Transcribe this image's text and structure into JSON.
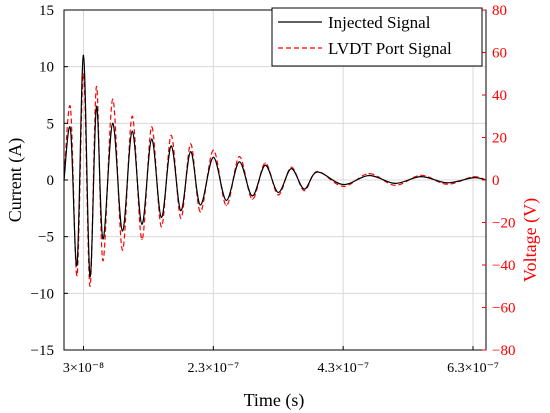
{
  "chart_data": {
    "type": "line",
    "title": "",
    "xlabel": "Time (s)",
    "ylabel_left": "Current (A)",
    "ylabel_right": "Voltage (V)",
    "xlim": [
      0.0,
      6.5e-07
    ],
    "ylim_left": [
      -15,
      15
    ],
    "ylim_right": [
      -80,
      80
    ],
    "x_ticks": [
      3e-08,
      2.3e-07,
      4.3e-07,
      6.3e-07
    ],
    "x_tick_labels": [
      "3×10⁻⁸",
      "2.3×10⁻⁷",
      "4.3×10⁻⁷",
      "6.3×10⁻⁷"
    ],
    "y_left_ticks": [
      -15,
      -10,
      -5,
      0,
      5,
      10,
      15
    ],
    "y_left_tick_labels": [
      "−15",
      "−10",
      "−5",
      "0",
      "5",
      "10",
      "15"
    ],
    "y_right_ticks": [
      -80,
      -60,
      -40,
      -20,
      0,
      20,
      40,
      60,
      80
    ],
    "y_right_tick_labels": [
      "−80",
      "−60",
      "−40",
      "−20",
      "0",
      "20",
      "40",
      "60",
      "80"
    ],
    "grid": true,
    "legend_position": "top-right",
    "series": [
      {
        "name": "Injected Signal",
        "axis": "left",
        "color": "#000000",
        "style": "solid",
        "x": [
          0,
          1e-08,
          2e-08,
          3e-08,
          4e-08,
          5e-08,
          6e-08,
          7.5e-08,
          9e-08,
          1.05e-07,
          1.2e-07,
          1.35e-07,
          1.5e-07,
          1.65e-07,
          1.8e-07,
          1.95e-07,
          2.1e-07,
          2.3e-07,
          2.5e-07,
          2.7e-07,
          2.9e-07,
          3.1e-07,
          3.3e-07,
          3.5e-07,
          3.7e-07,
          3.9e-07,
          4.3e-07,
          4.7e-07,
          5.1e-07,
          5.5e-07,
          5.9e-07,
          6.3e-07,
          6.5e-07
        ],
        "y": [
          0,
          4.5,
          -7.5,
          11.0,
          -8.5,
          6.5,
          -5.2,
          5.0,
          -4.5,
          4.3,
          -3.9,
          3.6,
          -3.3,
          3.0,
          -2.7,
          2.5,
          -2.2,
          2.0,
          -1.8,
          1.6,
          -1.4,
          1.3,
          -1.1,
          1.0,
          -0.8,
          0.7,
          -0.4,
          0.4,
          -0.3,
          0.3,
          -0.25,
          0.2,
          0
        ]
      },
      {
        "name": "LVDT Port Signal",
        "axis": "right",
        "color": "#ff0000",
        "style": "dashed",
        "x": [
          0,
          1e-08,
          2e-08,
          3e-08,
          4e-08,
          5e-08,
          6e-08,
          7.5e-08,
          9e-08,
          1.05e-07,
          1.2e-07,
          1.35e-07,
          1.5e-07,
          1.65e-07,
          1.8e-07,
          1.95e-07,
          2.1e-07,
          2.3e-07,
          2.5e-07,
          2.7e-07,
          2.9e-07,
          3.1e-07,
          3.3e-07,
          3.5e-07,
          3.7e-07,
          3.9e-07,
          4.3e-07,
          4.7e-07,
          5.1e-07,
          5.5e-07,
          5.9e-07,
          6.3e-07,
          6.5e-07
        ],
        "y": [
          0,
          34,
          -45,
          50,
          -50,
          44,
          -38,
          38,
          -33,
          30,
          -28,
          25,
          -22,
          21,
          -18,
          17,
          -15,
          14,
          -12,
          11,
          -9,
          8,
          -7,
          6,
          -5,
          4,
          -3,
          3,
          -2.5,
          2.2,
          -2,
          1.5,
          0
        ]
      }
    ]
  }
}
